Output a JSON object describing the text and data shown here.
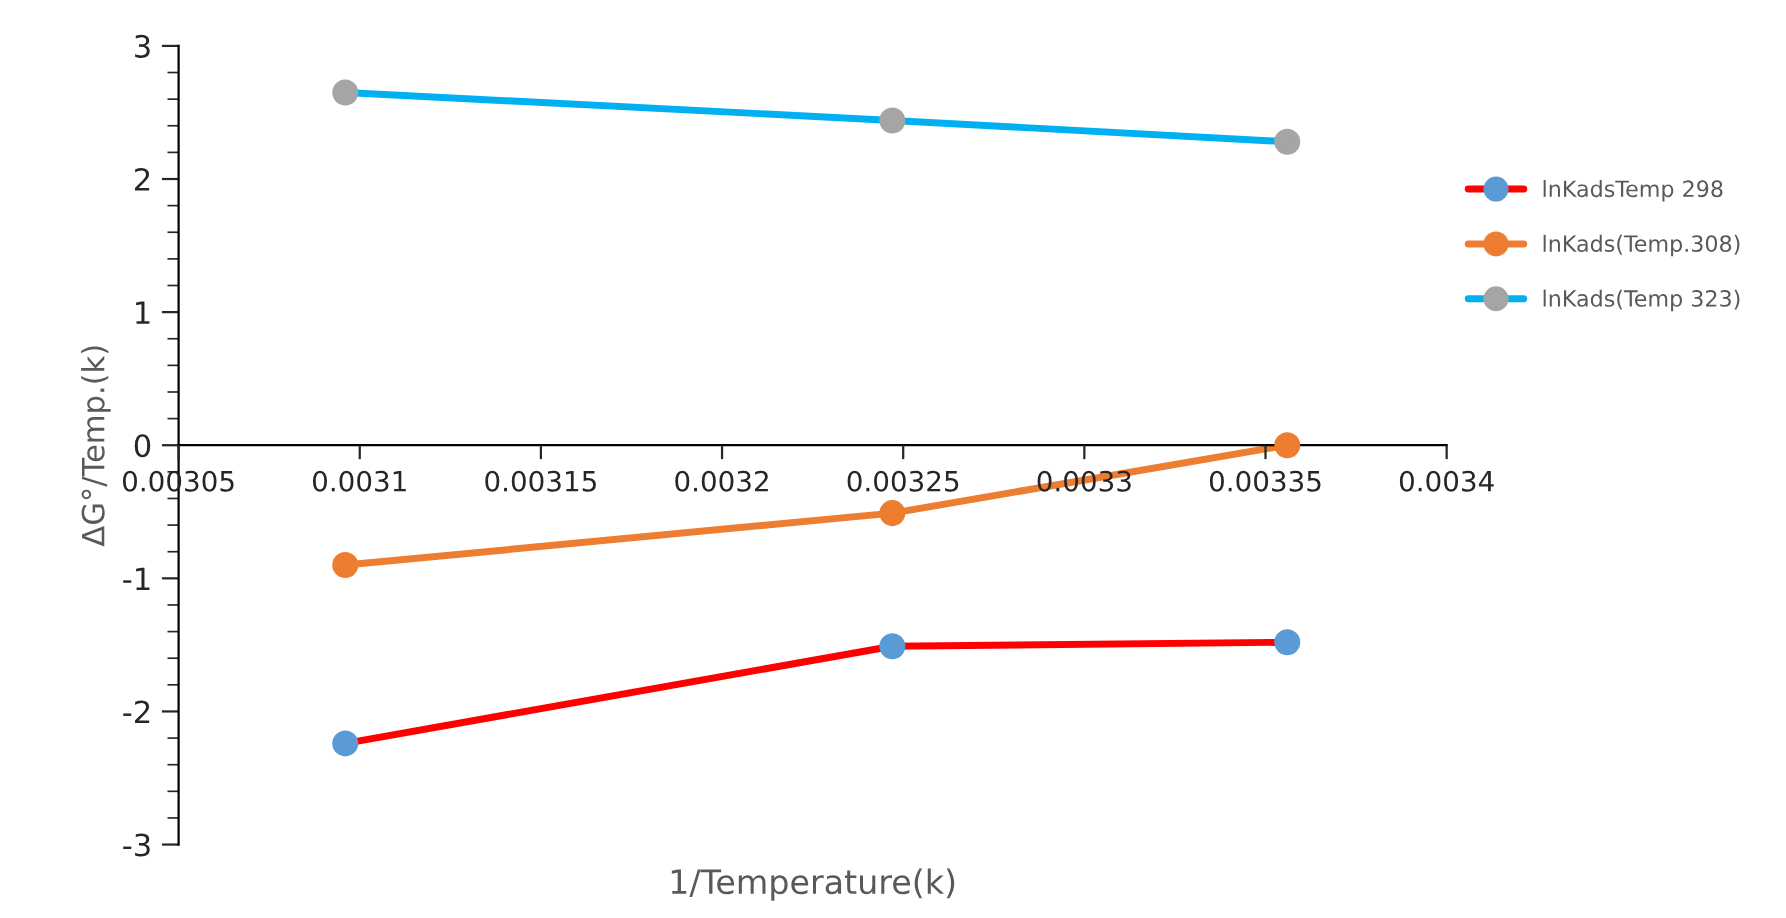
{
  "chart_data": {
    "type": "line",
    "xlabel": "1/Temperature(k)",
    "ylabel": "ΔG°/Temp.(k)",
    "x": [
      0.003096,
      0.003247,
      0.003356
    ],
    "series": [
      {
        "name": "lnKadsTemp 298",
        "color": "#ff0000",
        "colors": [
          "#5b9bd5",
          "#5b9bd5",
          "#5b9bd5"
        ],
        "values": [
          -2.24,
          -1.51,
          -1.48
        ]
      },
      {
        "name": "lnKads(Temp.308)",
        "color": "#ed7d31",
        "colors": [
          "#ed7d31",
          "#ed7d31",
          "#ed7d31"
        ],
        "values": [
          -0.9,
          -0.51,
          0.0
        ]
      },
      {
        "name": "lnKads(Temp 323)",
        "color": "#00b0f0",
        "colors": [
          "#a5a5a5",
          "#a5a5a5",
          "#a5a5a5"
        ],
        "values": [
          2.65,
          2.44,
          2.28
        ]
      }
    ],
    "xlim": [
      0.00305,
      0.0034
    ],
    "xticks": [
      0.00305,
      0.0031,
      0.00315,
      0.0032,
      0.00325,
      0.0033,
      0.00335,
      0.0034
    ],
    "ylim": [
      -3,
      3
    ],
    "yticks": [
      -3,
      -2,
      -1,
      0,
      1,
      2,
      3
    ],
    "marker": "circle",
    "line_style": "solid",
    "grid": false,
    "legend": "right"
  }
}
